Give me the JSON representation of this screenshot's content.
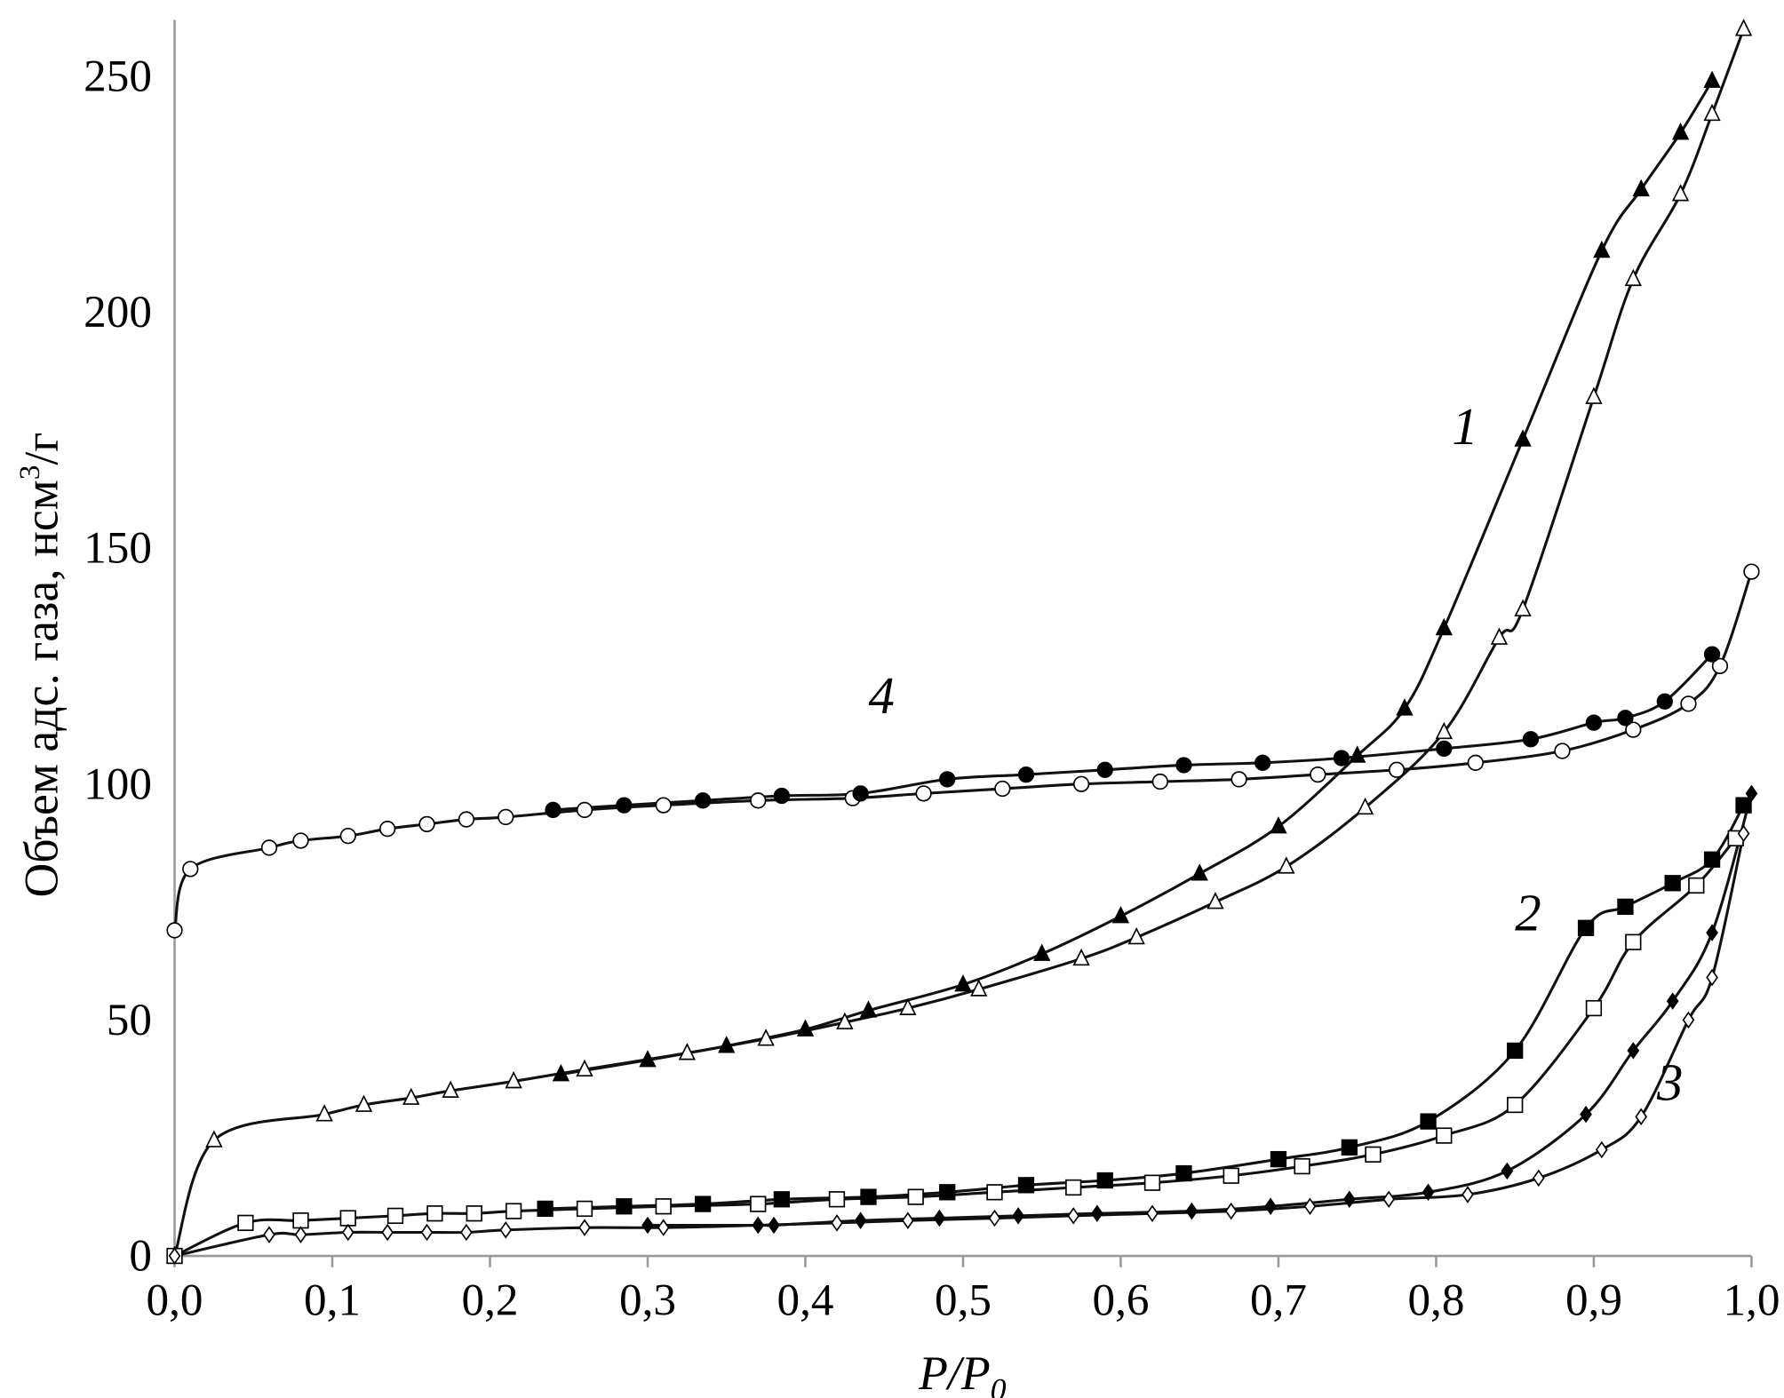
{
  "chart_data": {
    "type": "line",
    "title": "",
    "xlabel": "P/P0",
    "xlabel_main": "P/P",
    "xlabel_sub": "0",
    "ylabel": "Объем адс. газа, нсм³/г",
    "ylabel_main": "Объем адс. газа, нсм",
    "ylabel_sup": "3",
    "ylabel_end": "/г",
    "xlim": [
      0,
      1
    ],
    "ylim": [
      0,
      260
    ],
    "xticks": [
      0,
      0.1,
      0.2,
      0.3,
      0.4,
      0.5,
      0.6,
      0.7,
      0.8,
      0.9,
      1.0
    ],
    "xtick_labels": [
      "0,0",
      "0,1",
      "0,2",
      "0,3",
      "0,4",
      "0,5",
      "0,6",
      "0,7",
      "0,8",
      "0,9",
      "1,0"
    ],
    "yticks": [
      0,
      50,
      100,
      150,
      200,
      250
    ],
    "ytick_labels": [
      "0",
      "50",
      "100",
      "150",
      "200",
      "250"
    ],
    "grid": false,
    "curve_labels": [
      {
        "text": "1",
        "x": 0.81,
        "y": 172
      },
      {
        "text": "4",
        "x": 0.44,
        "y": 115
      },
      {
        "text": "2",
        "x": 0.85,
        "y": 69
      },
      {
        "text": "3",
        "x": 0.94,
        "y": 33
      }
    ],
    "series": [
      {
        "name": "1 (filled triangles)",
        "marker": "triangle",
        "filled": true,
        "points": [
          [
            0.245,
            38.5
          ],
          [
            0.3,
            41.5
          ],
          [
            0.35,
            44.5
          ],
          [
            0.4,
            48
          ],
          [
            0.44,
            52
          ],
          [
            0.5,
            57.5
          ],
          [
            0.55,
            64
          ],
          [
            0.6,
            72
          ],
          [
            0.65,
            81
          ],
          [
            0.7,
            91
          ],
          [
            0.75,
            106
          ],
          [
            0.78,
            116
          ],
          [
            0.805,
            133
          ],
          [
            0.855,
            173
          ],
          [
            0.905,
            213
          ],
          [
            0.93,
            226
          ],
          [
            0.955,
            238
          ],
          [
            0.975,
            249
          ]
        ]
      },
      {
        "name": "1 (open triangles)",
        "marker": "triangle",
        "filled": false,
        "points": [
          [
            0,
            0
          ],
          [
            0.025,
            24.5
          ],
          [
            0.095,
            30
          ],
          [
            0.12,
            32
          ],
          [
            0.15,
            33.5
          ],
          [
            0.175,
            35
          ],
          [
            0.215,
            37
          ],
          [
            0.26,
            39.5
          ],
          [
            0.325,
            43
          ],
          [
            0.375,
            46
          ],
          [
            0.425,
            49.5
          ],
          [
            0.465,
            52.5
          ],
          [
            0.51,
            56.5
          ],
          [
            0.575,
            63
          ],
          [
            0.61,
            67.5
          ],
          [
            0.66,
            75
          ],
          [
            0.705,
            82.5
          ],
          [
            0.755,
            95
          ],
          [
            0.805,
            111
          ],
          [
            0.84,
            131
          ],
          [
            0.855,
            137
          ],
          [
            0.9,
            182
          ],
          [
            0.925,
            207
          ],
          [
            0.955,
            225
          ],
          [
            0.975,
            242
          ],
          [
            0.995,
            260
          ]
        ]
      },
      {
        "name": "4 (open circles)",
        "marker": "circle",
        "filled": false,
        "points": [
          [
            0,
            69
          ],
          [
            0.01,
            82
          ],
          [
            0.06,
            86.5
          ],
          [
            0.08,
            88
          ],
          [
            0.11,
            89
          ],
          [
            0.135,
            90.5
          ],
          [
            0.16,
            91.5
          ],
          [
            0.185,
            92.5
          ],
          [
            0.21,
            93
          ],
          [
            0.26,
            94.5
          ],
          [
            0.31,
            95.5
          ],
          [
            0.37,
            96.5
          ],
          [
            0.43,
            97
          ],
          [
            0.475,
            98
          ],
          [
            0.525,
            99
          ],
          [
            0.575,
            100
          ],
          [
            0.625,
            100.5
          ],
          [
            0.675,
            101
          ],
          [
            0.725,
            102
          ],
          [
            0.775,
            103
          ],
          [
            0.825,
            104.5
          ],
          [
            0.88,
            107
          ],
          [
            0.925,
            111.5
          ],
          [
            0.96,
            117
          ],
          [
            0.98,
            125
          ],
          [
            1.0,
            145
          ]
        ]
      },
      {
        "name": "4 (filled circles)",
        "marker": "circle",
        "filled": true,
        "points": [
          [
            0.24,
            94.5
          ],
          [
            0.285,
            95.5
          ],
          [
            0.335,
            96.5
          ],
          [
            0.385,
            97.5
          ],
          [
            0.435,
            98
          ],
          [
            0.49,
            101
          ],
          [
            0.54,
            102
          ],
          [
            0.59,
            103
          ],
          [
            0.64,
            104
          ],
          [
            0.69,
            104.5
          ],
          [
            0.74,
            105.5
          ],
          [
            0.805,
            107.5
          ],
          [
            0.86,
            109.5
          ],
          [
            0.9,
            113
          ],
          [
            0.92,
            114
          ],
          [
            0.945,
            117.5
          ],
          [
            0.975,
            127.5
          ]
        ]
      },
      {
        "name": "2 (open squares)",
        "marker": "square",
        "filled": false,
        "points": [
          [
            0,
            0
          ],
          [
            0.045,
            7
          ],
          [
            0.08,
            7.5
          ],
          [
            0.11,
            8
          ],
          [
            0.14,
            8.5
          ],
          [
            0.165,
            9
          ],
          [
            0.19,
            9
          ],
          [
            0.215,
            9.5
          ],
          [
            0.26,
            10
          ],
          [
            0.31,
            10.5
          ],
          [
            0.37,
            11
          ],
          [
            0.42,
            12
          ],
          [
            0.47,
            12.5
          ],
          [
            0.52,
            13.5
          ],
          [
            0.57,
            14.5
          ],
          [
            0.62,
            15.5
          ],
          [
            0.67,
            17
          ],
          [
            0.715,
            19
          ],
          [
            0.76,
            21.5
          ],
          [
            0.805,
            25.5
          ],
          [
            0.85,
            32
          ],
          [
            0.9,
            52.5
          ],
          [
            0.925,
            66.5
          ],
          [
            0.965,
            78.5
          ],
          [
            0.99,
            88.5
          ]
        ]
      },
      {
        "name": "2 (filled squares)",
        "marker": "square",
        "filled": true,
        "points": [
          [
            0.235,
            10
          ],
          [
            0.285,
            10.5
          ],
          [
            0.335,
            11
          ],
          [
            0.385,
            12
          ],
          [
            0.44,
            12.5
          ],
          [
            0.49,
            13.5
          ],
          [
            0.54,
            15
          ],
          [
            0.59,
            16
          ],
          [
            0.64,
            17.5
          ],
          [
            0.7,
            20.5
          ],
          [
            0.745,
            23
          ],
          [
            0.795,
            28.5
          ],
          [
            0.85,
            43.5
          ],
          [
            0.895,
            69.5
          ],
          [
            0.92,
            74
          ],
          [
            0.95,
            79
          ],
          [
            0.975,
            84
          ],
          [
            0.995,
            95.5
          ]
        ]
      },
      {
        "name": "3 (open diamonds)",
        "marker": "diamond",
        "filled": false,
        "points": [
          [
            0,
            0
          ],
          [
            0.06,
            4.5
          ],
          [
            0.08,
            4.5
          ],
          [
            0.11,
            5
          ],
          [
            0.135,
            5
          ],
          [
            0.16,
            5
          ],
          [
            0.185,
            5
          ],
          [
            0.21,
            5.5
          ],
          [
            0.26,
            6
          ],
          [
            0.31,
            6
          ],
          [
            0.37,
            6.5
          ],
          [
            0.42,
            7
          ],
          [
            0.465,
            7.5
          ],
          [
            0.52,
            8
          ],
          [
            0.57,
            8.5
          ],
          [
            0.62,
            9
          ],
          [
            0.67,
            9.5
          ],
          [
            0.72,
            10.5
          ],
          [
            0.77,
            12
          ],
          [
            0.82,
            13
          ],
          [
            0.865,
            16.5
          ],
          [
            0.905,
            22.5
          ],
          [
            0.93,
            29.5
          ],
          [
            0.96,
            50
          ],
          [
            0.975,
            59
          ],
          [
            0.995,
            89.5
          ]
        ]
      },
      {
        "name": "3 (filled diamonds)",
        "marker": "diamond",
        "filled": true,
        "points": [
          [
            0.3,
            6.5
          ],
          [
            0.37,
            6.5
          ],
          [
            0.38,
            6.5
          ],
          [
            0.435,
            7.5
          ],
          [
            0.485,
            8
          ],
          [
            0.535,
            8.5
          ],
          [
            0.585,
            9
          ],
          [
            0.645,
            9.5
          ],
          [
            0.695,
            10.5
          ],
          [
            0.745,
            12
          ],
          [
            0.795,
            13.5
          ],
          [
            0.845,
            18
          ],
          [
            0.895,
            30
          ],
          [
            0.925,
            43.5
          ],
          [
            0.95,
            54
          ],
          [
            0.975,
            68.5
          ],
          [
            1.0,
            98
          ]
        ]
      }
    ]
  }
}
